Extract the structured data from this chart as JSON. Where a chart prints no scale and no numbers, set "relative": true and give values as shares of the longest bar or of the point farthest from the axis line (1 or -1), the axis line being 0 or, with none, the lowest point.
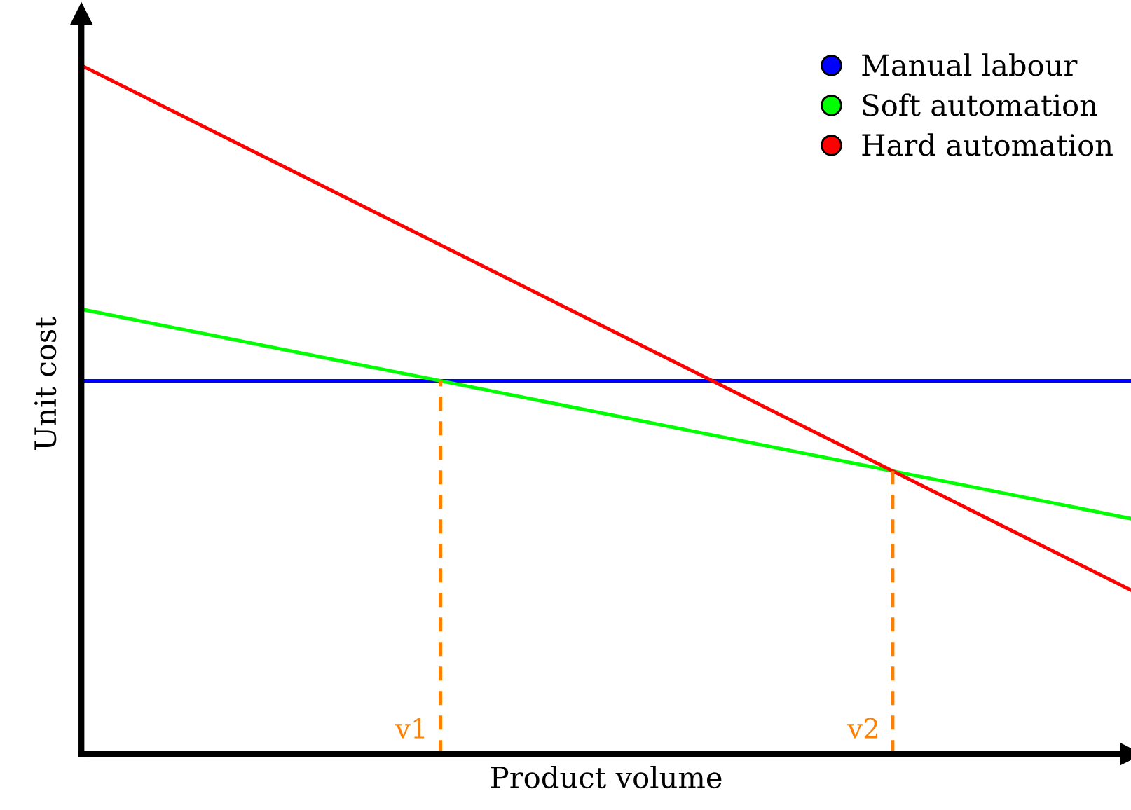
{
  "chart_data": {
    "type": "line",
    "relative": true,
    "xlabel": "Product volume",
    "ylabel": "Unit cost",
    "categories": [
      null,
      null
    ],
    "tick_labels": false,
    "legend": "top right",
    "marker": "none",
    "line_style": "solid",
    "series": [
      {
        "name": "Manual labour",
        "color": "#0000ff",
        "values": [
          0.542,
          0.542
        ]
      },
      {
        "name": "Soft automation",
        "color": "#00ff00",
        "values": [
          0.646,
          0.342
        ]
      },
      {
        "name": "Hard automation",
        "color": "#ff0000",
        "values": [
          1,
          0.238
        ]
      }
    ],
    "annotations": [
      "v1",
      "v2"
    ]
  }
}
